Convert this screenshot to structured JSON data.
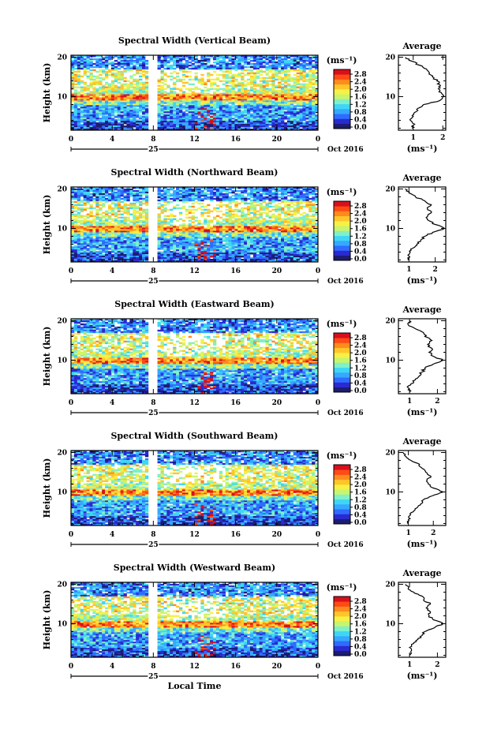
{
  "colors": {
    "heatmap_scale": [
      "#1c1c70",
      "#2a2ad0",
      "#2f6bff",
      "#36a8ff",
      "#3fd6f5",
      "#7ff0c8",
      "#c8f46e",
      "#f7f045",
      "#ffc52a",
      "#ff8a1e",
      "#ff4a14",
      "#d8101c"
    ],
    "axis": "#000000"
  },
  "chart_data": [
    {
      "type": "heatmap",
      "title": "Spectral Width (Vertical Beam)",
      "ylabel": "Height (km)",
      "xlabel": "",
      "x_ticks": [
        "0",
        "4",
        "8",
        "12",
        "16",
        "20",
        "0"
      ],
      "day_label": "25",
      "date_label": "Oct 2016",
      "y_ticks": [
        "10",
        "20"
      ],
      "ylim": [
        1.5,
        20.5
      ],
      "xlim": [
        0,
        24
      ],
      "data_gap_hours": [
        7.7,
        8.3
      ],
      "colorbar_unit": "(ms⁻¹)",
      "colorbar_ticks": [
        "0.0",
        "0.4",
        "0.8",
        "1.2",
        "1.6",
        "2.0",
        "2.4",
        "2.8"
      ],
      "profile": {
        "title": "Average",
        "xlabel": "(ms⁻¹)",
        "x_ticks": [
          "1",
          "2"
        ],
        "xlim": [
          0.5,
          2.1
        ],
        "heights_km": [
          2,
          3,
          4,
          5,
          6,
          7,
          8,
          9,
          10,
          11,
          12,
          13,
          14,
          15,
          16,
          17,
          18,
          19,
          20
        ],
        "values": [
          0.95,
          1.05,
          0.9,
          1.0,
          1.05,
          1.15,
          1.35,
          1.9,
          2.0,
          1.95,
          1.85,
          1.9,
          1.8,
          1.65,
          1.55,
          1.45,
          1.2,
          0.95,
          0.75
        ]
      }
    },
    {
      "type": "heatmap",
      "title": "Spectral Width (Northward Beam)",
      "ylabel": "Height (km)",
      "xlabel": "",
      "x_ticks": [
        "0",
        "4",
        "8",
        "12",
        "16",
        "20",
        "0"
      ],
      "day_label": "25",
      "date_label": "Oct 2016",
      "y_ticks": [
        "10",
        "20"
      ],
      "ylim": [
        1.5,
        20.5
      ],
      "xlim": [
        0,
        24
      ],
      "data_gap_hours": [
        7.7,
        8.3
      ],
      "colorbar_unit": "(ms⁻¹)",
      "colorbar_ticks": [
        "0.0",
        "0.4",
        "0.8",
        "1.2",
        "1.6",
        "2.0",
        "2.4",
        "2.8"
      ],
      "profile": {
        "title": "Average",
        "xlabel": "(ms⁻¹)",
        "x_ticks": [
          "1",
          "2"
        ],
        "xlim": [
          0.6,
          2.4
        ],
        "heights_km": [
          2,
          3,
          4,
          5,
          6,
          7,
          8,
          9,
          10,
          11,
          12,
          13,
          14,
          15,
          16,
          17,
          18,
          19,
          20
        ],
        "values": [
          0.95,
          1.0,
          1.05,
          1.15,
          1.3,
          1.45,
          1.6,
          1.9,
          2.35,
          2.0,
          1.75,
          1.7,
          1.85,
          1.7,
          1.85,
          1.6,
          1.25,
          1.0,
          0.85
        ]
      }
    },
    {
      "type": "heatmap",
      "title": "Spectral Width (Eastward Beam)",
      "ylabel": "Height (km)",
      "xlabel": "",
      "x_ticks": [
        "0",
        "4",
        "8",
        "12",
        "16",
        "20",
        "0"
      ],
      "day_label": "25",
      "date_label": "Oct 2016",
      "y_ticks": [
        "10",
        "20"
      ],
      "ylim": [
        1.5,
        20.5
      ],
      "xlim": [
        0,
        24
      ],
      "data_gap_hours": [
        7.7,
        8.3
      ],
      "colorbar_unit": "(ms⁻¹)",
      "colorbar_ticks": [
        "0.0",
        "0.4",
        "0.8",
        "1.2",
        "1.6",
        "2.0",
        "2.4",
        "2.8"
      ],
      "profile": {
        "title": "Average",
        "xlabel": "(ms⁻¹)",
        "x_ticks": [
          "1",
          "2"
        ],
        "xlim": [
          0.6,
          2.3
        ],
        "heights_km": [
          2,
          3,
          4,
          5,
          6,
          7,
          8,
          9,
          10,
          11,
          12,
          13,
          14,
          15,
          16,
          17,
          18,
          19,
          20
        ],
        "values": [
          1.0,
          0.95,
          1.05,
          1.2,
          1.35,
          1.45,
          1.55,
          1.85,
          2.2,
          1.85,
          1.7,
          1.8,
          1.65,
          1.8,
          1.55,
          1.5,
          1.2,
          0.95,
          1.0
        ]
      }
    },
    {
      "type": "heatmap",
      "title": "Spectral Width (Southward Beam)",
      "ylabel": "Height (km)",
      "xlabel": "",
      "x_ticks": [
        "0",
        "4",
        "8",
        "12",
        "16",
        "20",
        "0"
      ],
      "day_label": "25",
      "date_label": "Oct 2016",
      "y_ticks": [
        "10",
        "20"
      ],
      "ylim": [
        1.5,
        20.5
      ],
      "xlim": [
        0,
        24
      ],
      "data_gap_hours": [
        7.7,
        8.3
      ],
      "colorbar_unit": "(ms⁻¹)",
      "colorbar_ticks": [
        "0.0",
        "0.4",
        "0.8",
        "1.2",
        "1.6",
        "2.0",
        "2.4",
        "2.8"
      ],
      "profile": {
        "title": "Average",
        "xlabel": "(ms⁻¹)",
        "x_ticks": [
          "1",
          "2"
        ],
        "xlim": [
          0.6,
          2.5
        ],
        "heights_km": [
          2,
          3,
          4,
          5,
          6,
          7,
          8,
          9,
          10,
          11,
          12,
          13,
          14,
          15,
          16,
          17,
          18,
          19,
          20
        ],
        "values": [
          0.95,
          1.0,
          1.05,
          1.2,
          1.35,
          1.5,
          1.6,
          1.95,
          2.4,
          2.0,
          1.8,
          1.75,
          1.9,
          1.7,
          1.55,
          1.45,
          1.1,
          0.9,
          0.8
        ]
      }
    },
    {
      "type": "heatmap",
      "title": "Spectral Width (Westward Beam)",
      "ylabel": "Height (km)",
      "xlabel": "Local Time",
      "x_ticks": [
        "0",
        "4",
        "8",
        "12",
        "16",
        "20",
        "0"
      ],
      "day_label": "25",
      "date_label": "Oct 2016",
      "y_ticks": [
        "10",
        "20"
      ],
      "ylim": [
        1.5,
        20.5
      ],
      "xlim": [
        0,
        24
      ],
      "data_gap_hours": [
        7.7,
        8.3
      ],
      "colorbar_unit": "(ms⁻¹)",
      "colorbar_ticks": [
        "0.0",
        "0.4",
        "0.8",
        "1.2",
        "1.6",
        "2.0",
        "2.4",
        "2.8"
      ],
      "profile": {
        "title": "Average",
        "xlabel": "(ms⁻¹)",
        "x_ticks": [
          "1",
          "2"
        ],
        "xlim": [
          0.6,
          2.3
        ],
        "heights_km": [
          2,
          3,
          4,
          5,
          6,
          7,
          8,
          9,
          10,
          11,
          12,
          13,
          14,
          15,
          16,
          17,
          18,
          19,
          20
        ],
        "values": [
          1.0,
          1.05,
          1.0,
          1.15,
          1.3,
          1.45,
          1.55,
          1.9,
          2.2,
          1.85,
          1.7,
          1.75,
          1.6,
          1.75,
          1.5,
          1.45,
          1.15,
          0.95,
          0.85
        ]
      }
    }
  ]
}
